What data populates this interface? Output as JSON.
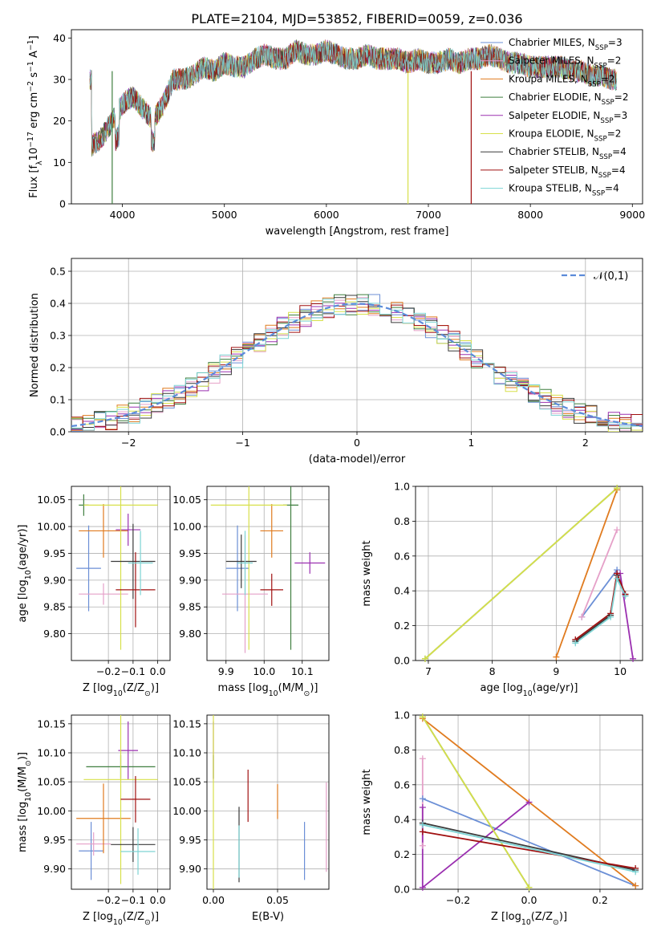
{
  "figure_title": "PLATE=2104, MJD=53852, FIBERID=0059, z=0.036",
  "colors": {
    "Chabrier MILES": "#6b8fd6",
    "Salpeter MILES": "#e5a0c8",
    "Kroupa MILES": "#e07b1f",
    "Chabrier ELODIE": "#3f7f3f",
    "Salpeter ELODIE": "#9b30b0",
    "Kroupa ELODIE": "#d7e04a",
    "Chabrier STELIB": "#3a3a3a",
    "Salpeter STELIB": "#a01010",
    "Kroupa STELIB": "#7dd4d4"
  },
  "chart_data": [
    {
      "id": "spectrum",
      "type": "line",
      "xlabel": "wavelength [Angstrom, rest frame]",
      "ylabel": "Flux [f$_\\lambda$10$^{-17}$ erg cm$^{-2}$ s$^{-1}$ A$^{-1}$]",
      "xlim": [
        3500,
        9100
      ],
      "ylim": [
        0,
        42
      ],
      "xticks": [
        4000,
        5000,
        6000,
        7000,
        8000,
        9000
      ],
      "yticks": [
        0,
        10,
        20,
        30,
        40
      ],
      "legend_position": "top-right",
      "legend": [
        "Chabrier MILES, N$_{SSP}$=3",
        "Salpeter MILES, N$_{SSP}$=2",
        "Kroupa MILES, N$_{SSP}$=2",
        "Chabrier ELODIE, N$_{SSP}$=2",
        "Salpeter ELODIE, N$_{SSP}$=3",
        "Kroupa ELODIE, N$_{SSP}$=2",
        "Chabrier STELIB, N$_{SSP}$=4",
        "Salpeter STELIB, N$_{SSP}$=4",
        "Kroupa STELIB, N$_{SSP}$=4"
      ],
      "x": [
        3700,
        3800,
        3900,
        4000,
        4100,
        4200,
        4300,
        4400,
        4500,
        4600,
        4700,
        4800,
        4900,
        5000,
        5100,
        5200,
        5300,
        5400,
        5500,
        5600,
        5700,
        5800,
        5900,
        6000,
        6100,
        6200,
        6300,
        6400,
        6500,
        6600,
        6700,
        6800,
        6900,
        7000,
        7100,
        7200,
        7300,
        7400,
        7500,
        7600,
        7700,
        7800,
        7900,
        8000,
        8100,
        8200,
        8300,
        8400,
        8500,
        8600,
        8700,
        8800
      ],
      "y": [
        14,
        16,
        20,
        24,
        26,
        23,
        20,
        24,
        30,
        30,
        31,
        33,
        32,
        34,
        33,
        33,
        35,
        36,
        35,
        35,
        37,
        36,
        36,
        37,
        36,
        35,
        35,
        36,
        35,
        35,
        35,
        34,
        35,
        34,
        34,
        35,
        34,
        35,
        35,
        36,
        35,
        34,
        34,
        33,
        33,
        33,
        33,
        32,
        32,
        31,
        31,
        30
      ],
      "dropouts": [
        {
          "series": "Salpeter STELIB",
          "from_x": 7420,
          "to_y": 0
        },
        {
          "series": "Kroupa ELODIE",
          "from_x": 6800,
          "to_y": 0
        },
        {
          "series": "Chabrier ELODIE",
          "from_x": 3900,
          "to_y": 0
        }
      ]
    },
    {
      "id": "residuals",
      "type": "step",
      "xlabel": "(data-model)/error",
      "ylabel": "Normed distribution",
      "xlim": [
        -2.5,
        2.5
      ],
      "ylim": [
        0,
        0.54
      ],
      "xticks": [
        -2,
        -1,
        0,
        1,
        2
      ],
      "yticks": [
        0.0,
        0.1,
        0.2,
        0.3,
        0.4,
        0.5
      ],
      "legend": [
        "$\\mathcal{N}(0,1)$"
      ],
      "legend_position": "top-right",
      "bin_width": 0.1
    },
    {
      "id": "age-vs-Z",
      "type": "scatter",
      "xlabel": "Z [log$_{10}$(Z/Z$_\\odot$)]",
      "ylabel": "age  [log$_{10}$(age/yr)]",
      "xlim": [
        -0.35,
        0.05
      ],
      "ylim": [
        9.75,
        10.075
      ],
      "xticks": [
        -0.2,
        -0.1,
        0.0
      ],
      "yticks": [
        9.8,
        9.85,
        9.9,
        9.95,
        10.0,
        10.05
      ],
      "points": [
        {
          "series": "Chabrier MILES",
          "x": -0.28,
          "y": 9.922,
          "xerr": 0.05,
          "yerr": 0.08
        },
        {
          "series": "Salpeter MILES",
          "x": -0.22,
          "y": 9.874,
          "xerr": 0.1,
          "yerr": 0.02
        },
        {
          "series": "Kroupa MILES",
          "x": -0.22,
          "y": 9.992,
          "xerr": 0.1,
          "yerr": 0.05
        },
        {
          "series": "Chabrier ELODIE",
          "x": -0.3,
          "y": 10.04,
          "xerr": 0.02,
          "yerr": 0.02
        },
        {
          "series": "Salpeter ELODIE",
          "x": -0.12,
          "y": 9.994,
          "xerr": 0.05,
          "yerr": 0.03
        },
        {
          "series": "Kroupa ELODIE",
          "x": -0.15,
          "y": 10.04,
          "xerr": 0.15,
          "yerr": 0.27
        },
        {
          "series": "Chabrier STELIB",
          "x": -0.1,
          "y": 9.935,
          "xerr": 0.09,
          "yerr": 0.07
        },
        {
          "series": "Salpeter STELIB",
          "x": -0.09,
          "y": 9.882,
          "xerr": 0.08,
          "yerr": 0.07
        },
        {
          "series": "Kroupa STELIB",
          "x": -0.07,
          "y": 9.932,
          "xerr": 0.05,
          "yerr": 0.06
        }
      ]
    },
    {
      "id": "age-vs-mass",
      "type": "scatter",
      "xlabel": "mass [log$_{10}$(M/M$_\\odot$)]",
      "ylabel": "",
      "xlim": [
        9.85,
        10.17
      ],
      "ylim": [
        9.75,
        10.075
      ],
      "xticks": [
        9.9,
        10.0,
        10.1
      ],
      "yticks": [
        9.8,
        9.85,
        9.9,
        9.95,
        10.0,
        10.05
      ],
      "points": [
        {
          "series": "Chabrier MILES",
          "x": 9.93,
          "y": 9.922,
          "xerr": 0.03,
          "yerr": 0.08
        },
        {
          "series": "Salpeter MILES",
          "x": 9.95,
          "y": 9.874,
          "xerr": 0.06,
          "yerr": 0.11
        },
        {
          "series": "Kroupa MILES",
          "x": 10.02,
          "y": 9.992,
          "xerr": 0.03,
          "yerr": 0.05
        },
        {
          "series": "Chabrier ELODIE",
          "x": 10.07,
          "y": 10.04,
          "xerr": 0.02,
          "yerr": 0.27
        },
        {
          "series": "Salpeter ELODIE",
          "x": 10.12,
          "y": 9.932,
          "xerr": 0.04,
          "yerr": 0.02
        },
        {
          "series": "Kroupa ELODIE",
          "x": 9.96,
          "y": 10.04,
          "xerr": 0.1,
          "yerr": 0.27
        },
        {
          "series": "Chabrier STELIB",
          "x": 9.94,
          "y": 9.935,
          "xerr": 0.04,
          "yerr": 0.05
        },
        {
          "series": "Salpeter STELIB",
          "x": 10.02,
          "y": 9.882,
          "xerr": 0.03,
          "yerr": 0.03
        },
        {
          "series": "Kroupa STELIB",
          "x": 9.95,
          "y": 9.932,
          "xerr": 0.02,
          "yerr": 0.06
        }
      ]
    },
    {
      "id": "mass-vs-Z",
      "type": "scatter",
      "xlabel": "Z [log$_{10}$(Z/Z$_\\odot$)]",
      "ylabel": "mass [log$_{10}$(M/M$_\\odot$)]",
      "xlim": [
        -0.35,
        0.05
      ],
      "ylim": [
        9.865,
        10.165
      ],
      "xticks": [
        -0.2,
        -0.1,
        0.0
      ],
      "yticks": [
        9.9,
        9.95,
        10.0,
        10.05,
        10.1,
        10.15
      ],
      "points": [
        {
          "series": "Chabrier MILES",
          "x": -0.27,
          "y": 9.931,
          "xerr": 0.05,
          "yerr": 0.05
        },
        {
          "series": "Salpeter MILES",
          "x": -0.26,
          "y": 9.943,
          "xerr": 0.07,
          "yerr": 0.02
        },
        {
          "series": "Kroupa MILES",
          "x": -0.22,
          "y": 9.987,
          "xerr": 0.11,
          "yerr": 0.06
        },
        {
          "series": "Chabrier ELODIE",
          "x": -0.15,
          "y": 10.076,
          "xerr": 0.14,
          "yerr": 0.02
        },
        {
          "series": "Salpeter ELODIE",
          "x": -0.12,
          "y": 10.104,
          "xerr": 0.04,
          "yerr": 0.05
        },
        {
          "series": "Kroupa ELODIE",
          "x": -0.15,
          "y": 10.054,
          "xerr": 0.15,
          "yerr": 0.18
        },
        {
          "series": "Chabrier STELIB",
          "x": -0.1,
          "y": 9.942,
          "xerr": 0.09,
          "yerr": 0.03
        },
        {
          "series": "Salpeter STELIB",
          "x": -0.09,
          "y": 10.02,
          "xerr": 0.06,
          "yerr": 0.04
        },
        {
          "series": "Kroupa STELIB",
          "x": -0.08,
          "y": 9.93,
          "xerr": 0.07,
          "yerr": 0.04
        }
      ]
    },
    {
      "id": "mass-vs-ebv",
      "type": "scatter",
      "xlabel": "E(B-V)",
      "ylabel": "",
      "xlim": [
        -0.005,
        0.09
      ],
      "ylim": [
        9.865,
        10.165
      ],
      "xticks": [
        0.0,
        0.05
      ],
      "yticks": [
        9.9,
        9.95,
        10.0,
        10.05,
        10.1,
        10.15
      ],
      "points": [
        {
          "series": "Chabrier MILES",
          "x": 0.071,
          "y": 9.931,
          "yerr": 0.05
        },
        {
          "series": "Salpeter MILES",
          "x": 0.088,
          "y": 9.972,
          "yerr": 0.077
        },
        {
          "series": "Kroupa MILES",
          "x": 0.05,
          "y": 10.016,
          "yerr": 0.03
        },
        {
          "series": "Chabrier ELODIE",
          "x": 0.0,
          "y": 10.076,
          "yerr": 0.02
        },
        {
          "series": "Salpeter ELODIE",
          "x": 0.0,
          "y": 10.104,
          "yerr": 0.05
        },
        {
          "series": "Kroupa ELODIE",
          "x": 0.0,
          "y": 9.99,
          "yerr": 0.18
        },
        {
          "series": "Chabrier STELIB",
          "x": 0.02,
          "y": 9.942,
          "yerr": 0.065
        },
        {
          "series": "Salpeter STELIB",
          "x": 0.027,
          "y": 10.026,
          "yerr": 0.045
        },
        {
          "series": "Kroupa STELIB",
          "x": 0.02,
          "y": 9.93,
          "yerr": 0.045
        }
      ]
    },
    {
      "id": "weight-vs-age",
      "type": "line",
      "xlabel": "age  [log$_{10}$(age/yr)]",
      "ylabel": "mass weight",
      "xlim": [
        6.8,
        10.35
      ],
      "ylim": [
        0,
        1.0
      ],
      "xticks": [
        7,
        8,
        9,
        10
      ],
      "yticks": [
        0.0,
        0.2,
        0.4,
        0.6,
        0.8,
        1.0
      ],
      "series": [
        {
          "name": "Chabrier MILES",
          "x": [
            9.4,
            9.95
          ],
          "y": [
            0.25,
            0.52
          ]
        },
        {
          "name": "Salpeter MILES",
          "x": [
            9.4,
            9.95
          ],
          "y": [
            0.25,
            0.75
          ]
        },
        {
          "name": "Kroupa MILES",
          "x": [
            9.0,
            9.95
          ],
          "y": [
            0.02,
            0.98
          ]
        },
        {
          "name": "Chabrier ELODIE",
          "x": [
            6.95,
            9.95
          ],
          "y": [
            0.01,
            0.99
          ]
        },
        {
          "name": "Salpeter ELODIE",
          "x": [
            9.95,
            10.0,
            10.2
          ],
          "y": [
            0.5,
            0.5,
            0.01
          ]
        },
        {
          "name": "Kroupa ELODIE",
          "x": [
            6.95,
            9.95
          ],
          "y": [
            0.01,
            0.99
          ]
        },
        {
          "name": "Chabrier STELIB",
          "x": [
            9.3,
            9.85,
            9.95,
            10.08
          ],
          "y": [
            0.11,
            0.26,
            0.49,
            0.38
          ]
        },
        {
          "name": "Salpeter STELIB",
          "x": [
            9.3,
            9.85,
            9.95,
            10.08
          ],
          "y": [
            0.12,
            0.27,
            0.5,
            0.38
          ]
        },
        {
          "name": "Kroupa STELIB",
          "x": [
            9.3,
            9.85,
            9.95,
            10.08
          ],
          "y": [
            0.1,
            0.25,
            0.47,
            0.37
          ]
        }
      ]
    },
    {
      "id": "weight-vs-Z",
      "type": "line",
      "xlabel": "Z [log$_{10}$(Z/Z$_\\odot$)]",
      "ylabel": "mass weight",
      "xlim": [
        -0.32,
        0.32
      ],
      "ylim": [
        0,
        1.0
      ],
      "xticks": [
        -0.2,
        0.0,
        0.2
      ],
      "yticks": [
        0.0,
        0.2,
        0.4,
        0.6,
        0.8,
        1.0
      ],
      "series": [
        {
          "name": "Chabrier MILES",
          "x": [
            -0.3,
            0.3
          ],
          "y": [
            0.52,
            0.02
          ]
        },
        {
          "name": "Salpeter MILES",
          "x": [
            -0.3,
            -0.3
          ],
          "y": [
            0.25,
            0.75
          ]
        },
        {
          "name": "Kroupa MILES",
          "x": [
            -0.3,
            0.3
          ],
          "y": [
            0.98,
            0.02
          ]
        },
        {
          "name": "Chabrier ELODIE",
          "x": [
            -0.3,
            0.0
          ],
          "y": [
            0.99,
            0.01
          ]
        },
        {
          "name": "Salpeter ELODIE",
          "x": [
            -0.3,
            -0.3,
            0.0
          ],
          "y": [
            0.47,
            0.01,
            0.5
          ]
        },
        {
          "name": "Kroupa ELODIE",
          "x": [
            -0.3,
            0.0
          ],
          "y": [
            0.99,
            0.01
          ]
        },
        {
          "name": "Chabrier STELIB",
          "x": [
            -0.3,
            0.3
          ],
          "y": [
            0.38,
            0.11
          ]
        },
        {
          "name": "Salpeter STELIB",
          "x": [
            -0.3,
            0.3
          ],
          "y": [
            0.33,
            0.12
          ]
        },
        {
          "name": "Kroupa STELIB",
          "x": [
            -0.3,
            0.3
          ],
          "y": [
            0.37,
            0.1
          ]
        }
      ]
    }
  ]
}
